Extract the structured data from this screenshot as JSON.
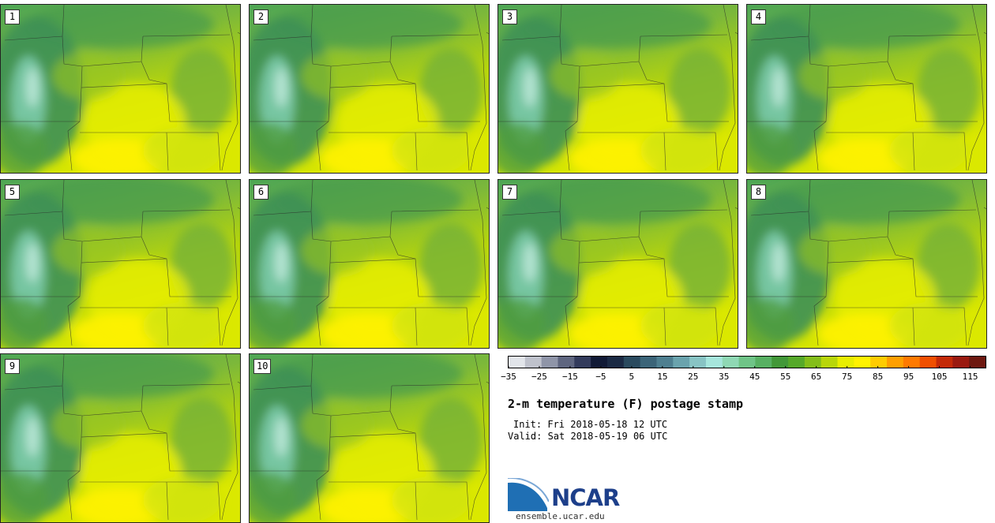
{
  "panels": [
    {
      "label": "1"
    },
    {
      "label": "2"
    },
    {
      "label": "3"
    },
    {
      "label": "4"
    },
    {
      "label": "5"
    },
    {
      "label": "6"
    },
    {
      "label": "7"
    },
    {
      "label": "8"
    },
    {
      "label": "9"
    },
    {
      "label": "10"
    }
  ],
  "colorbar": {
    "min": -35,
    "max": 120,
    "step": 5,
    "tick_labels": [
      "−35",
      "−25",
      "−15",
      "−5",
      "5",
      "15",
      "25",
      "35",
      "45",
      "55",
      "65",
      "75",
      "85",
      "95",
      "105",
      "115"
    ],
    "colors": [
      "#e2e5ea",
      "#bfc2cc",
      "#8f95a8",
      "#5f6680",
      "#333b5c",
      "#111a36",
      "#1b2a44",
      "#2a4a5e",
      "#3b6478",
      "#4e7f90",
      "#6aa3ad",
      "#88c4c4",
      "#a6e6dc",
      "#8fd8b4",
      "#6fc487",
      "#57b062",
      "#429838",
      "#56a92a",
      "#84be1a",
      "#b8d60a",
      "#e8ee00",
      "#fff200",
      "#ffcc00",
      "#ff9f00",
      "#ff7a00",
      "#f04f00",
      "#c42a08",
      "#9a1a10",
      "#6d1810"
    ]
  },
  "title": "2-m temperature (F) postage stamp",
  "init_text": "Init: Fri 2018-05-18 12 UTC",
  "valid_text": "Valid: Sat 2018-05-19 06 UTC",
  "logo": {
    "name": "NCAR",
    "url": "ensemble.ucar.edu",
    "colors": {
      "swoosh": "#1f6fb4",
      "text": "#1d3f8a"
    }
  }
}
